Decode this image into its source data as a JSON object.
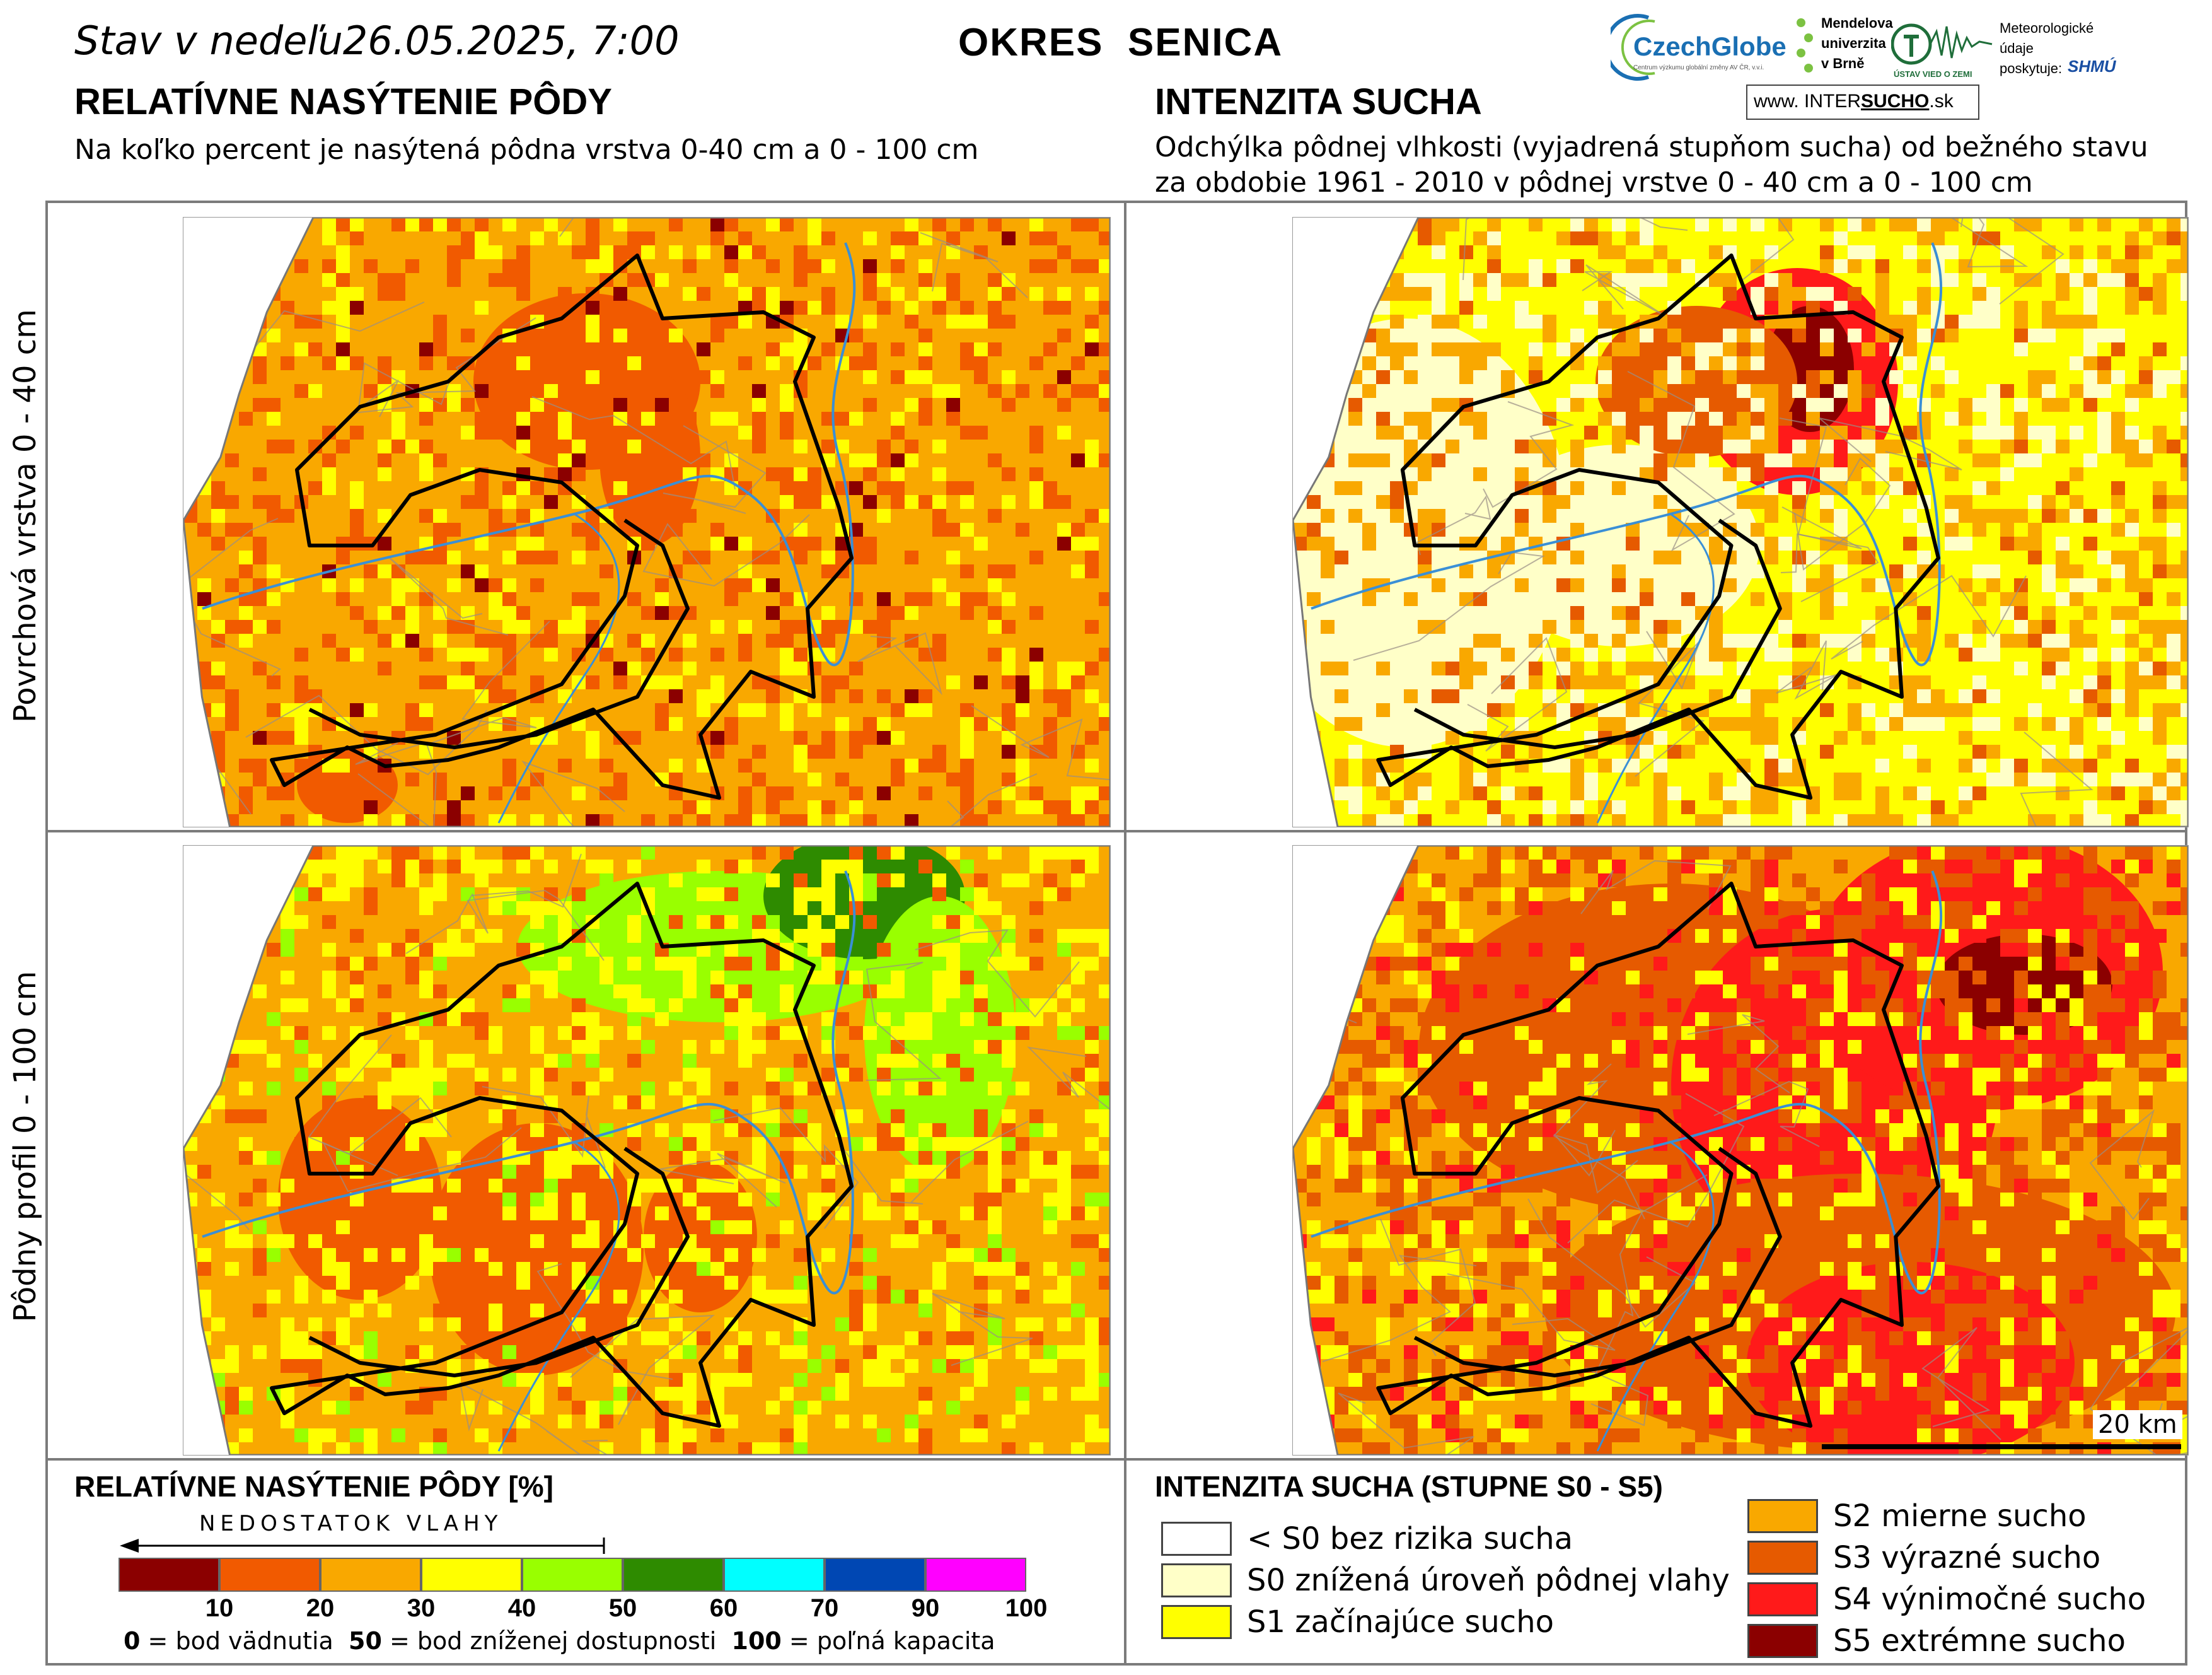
{
  "header": {
    "date_prefix": "Stav v nedeľu",
    "date": "26.05.2025, 7:00",
    "region": "OKRES  SENICA"
  },
  "left": {
    "title": "RELATÍVNE NASÝTENIE PÔDY",
    "subtitle": "Na koľko percent je nasýtená pôdna vrstva 0-40 cm a 0 - 100 cm"
  },
  "right": {
    "title": "INTENZITA SUCHA",
    "subtitle_1": "Odchýlka pôdnej vlhkosti (vyjadrená stupňom sucha) od bežného stavu",
    "subtitle_2": "za obdobie 1961 - 2010 v pôdnej vrstve 0 - 40 cm a 0 - 100 cm"
  },
  "rows": {
    "top": "Povrchová vrstva 0 - 40 cm",
    "bottom": "Pôdny profil 0 - 100 cm"
  },
  "logos": {
    "czechglobe": "CzechGlobe",
    "czechglobe_sub": "Centrum výzkumu globální změny AV ČR, v.v.i.",
    "mendel_1": "Mendelova",
    "mendel_2": "univerzita",
    "mendel_3": "v Brně",
    "uvz": "ÚSTAV VIED O ZEMI",
    "meteo_1": "Meteorologické",
    "meteo_2": "údaje",
    "meteo_3": "poskytuje:",
    "shmu": "SHMÚ",
    "intersucho_www": "www.",
    "intersucho_inter": "INTER",
    "intersucho_sucho": "SUCHO",
    "intersucho_sk": ".sk"
  },
  "scalebar": "20 km",
  "legend_saturation": {
    "title": "RELATÍVNE NASÝTENIE PÔDY [%]",
    "arrow_label": "NEDOSTATOK VLAHY",
    "colors": [
      "#8b0000",
      "#f15a00",
      "#f9a800",
      "#ffff00",
      "#99ff00",
      "#2e8b00",
      "#00ffff",
      "#0047b3",
      "#ff00ff"
    ],
    "ticks": [
      "10",
      "20",
      "30",
      "40",
      "50",
      "60",
      "70",
      "90",
      "100"
    ],
    "note_0": "0",
    "note_0_text": " = bod vädnutia  ",
    "note_50": "50",
    "note_50_text": " = bod zníženej dostupnosti  ",
    "note_100": "100",
    "note_100_text": " = poľná kapacita"
  },
  "legend_drought": {
    "title": "INTENZITA SUCHA (STUPNE S0 - S5)",
    "items": [
      {
        "label": "< S0 bez rizika sucha",
        "color": "#ffffff"
      },
      {
        "label": "S0 znížená úroveň pôdnej vlahy",
        "color": "#ffffc8"
      },
      {
        "label": "S1 začínajúce sucho",
        "color": "#ffff00"
      },
      {
        "label": "S2 mierne sucho",
        "color": "#f9a800"
      },
      {
        "label": "S3 výrazné sucho",
        "color": "#e65a00"
      },
      {
        "label": "S4 výnimočné sucho",
        "color": "#ff1a1a"
      },
      {
        "label": "S5 extrémne sucho",
        "color": "#8b0000"
      }
    ]
  },
  "maps": {
    "tl": {
      "base": "#f9a800",
      "patches": [
        [
          "#f15a00",
          0.22
        ],
        [
          "#ffff00",
          0.12
        ],
        [
          "#8b0000",
          0.02
        ]
      ],
      "hot": "#f15a00",
      "hot2": "#8b0000"
    },
    "tr": {
      "base": "#ffff00",
      "patches": [
        [
          "#f9a800",
          0.22
        ],
        [
          "#ffffc8",
          0.18
        ],
        [
          "#e65a00",
          0.06
        ]
      ],
      "hot": "#ff1a1a",
      "hot2": "#8b0000",
      "light": "#ffffc8"
    },
    "bl": {
      "base": "#f9a800",
      "patches": [
        [
          "#ffff00",
          0.25
        ],
        [
          "#f15a00",
          0.1
        ],
        [
          "#99ff00",
          0.05
        ]
      ],
      "hot": "#f15a00",
      "hot2": "#8b0000",
      "green": "#99ff00",
      "green2": "#2e8b00"
    },
    "br": {
      "base": "#f9a800",
      "patches": [
        [
          "#e65a00",
          0.28
        ],
        [
          "#ffff00",
          0.14
        ],
        [
          "#ff1a1a",
          0.06
        ]
      ],
      "hot": "#ff1a1a",
      "hot2": "#8b0000",
      "mid": "#e65a00"
    }
  }
}
